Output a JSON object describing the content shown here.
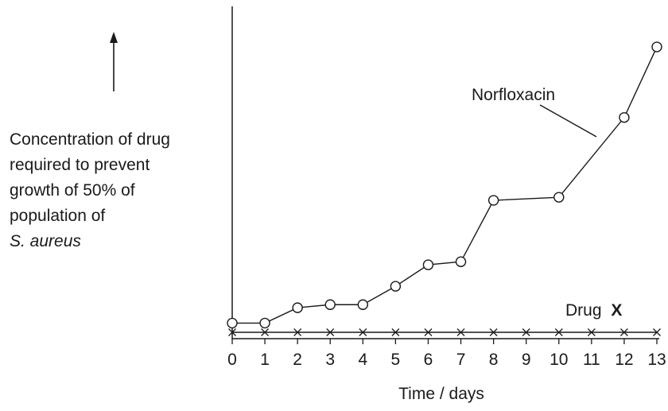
{
  "chart_data": {
    "type": "line",
    "title": "",
    "xlabel": "Time / days",
    "ylabel_lines": [
      {
        "text": "Concentration of drug",
        "italic": false
      },
      {
        "text": "required to prevent",
        "italic": false
      },
      {
        "text": "growth of 50% of",
        "italic": false
      },
      {
        "text": "population of",
        "italic": false
      },
      {
        "text": "S. aureus",
        "italic": true
      }
    ],
    "x_ticks": [
      0,
      1,
      2,
      3,
      4,
      5,
      6,
      7,
      8,
      9,
      10,
      11,
      12,
      13
    ],
    "xlim": [
      0,
      13
    ],
    "ylim": [
      0,
      100
    ],
    "grid": false,
    "y_axis_numbered": false,
    "series": [
      {
        "name": "Norfloxacin",
        "marker": "circle",
        "x": [
          0,
          1,
          2,
          3,
          4,
          5,
          6,
          7,
          8,
          10,
          12,
          13
        ],
        "y": [
          3,
          3,
          8,
          9,
          9,
          15,
          22,
          23,
          43,
          44,
          70,
          93
        ]
      },
      {
        "name": "Drug X",
        "name_plain": "Drug",
        "name_bold": "X",
        "marker": "cross",
        "x": [
          0,
          1,
          2,
          3,
          4,
          5,
          6,
          7,
          8,
          9,
          10,
          11,
          12,
          13
        ],
        "y": [
          0,
          0,
          0,
          0,
          0,
          0,
          0,
          0,
          0,
          0,
          0,
          0,
          0,
          0
        ]
      }
    ]
  }
}
